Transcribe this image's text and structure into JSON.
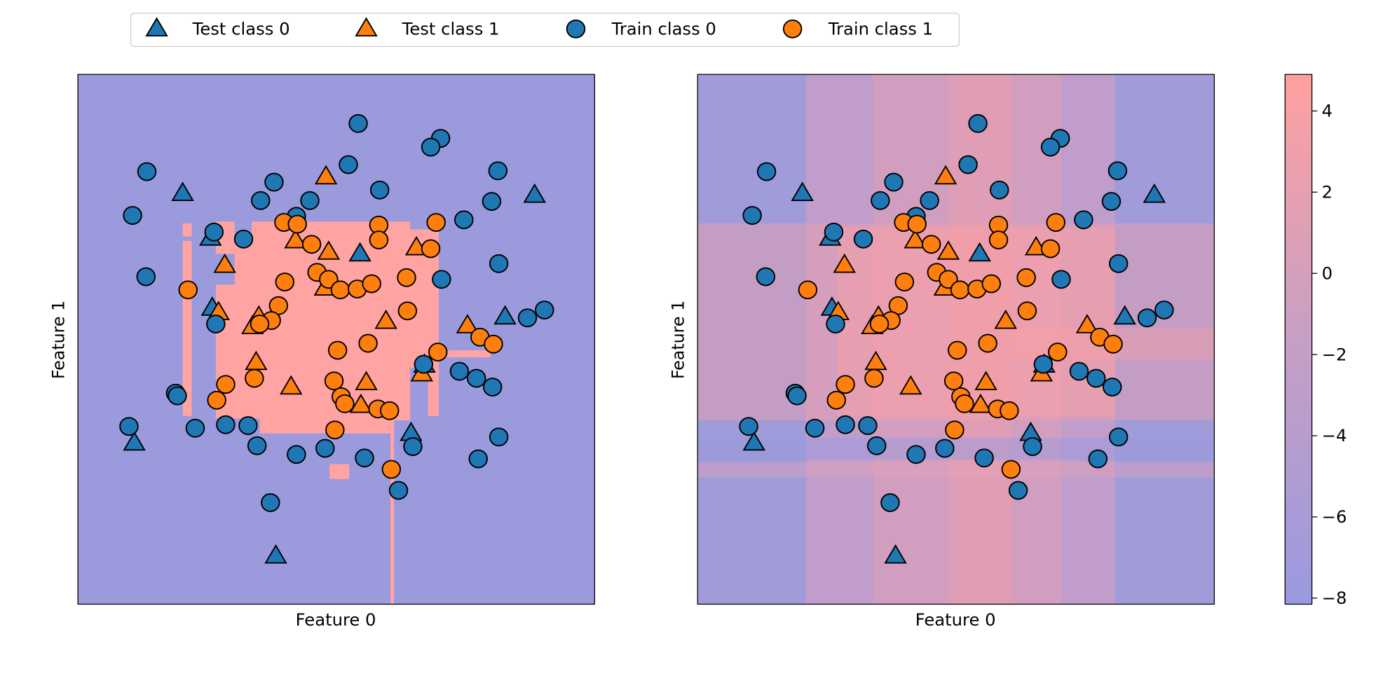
{
  "chart_data": {
    "type": "scatter",
    "xlabel": "Feature 0",
    "ylabel": "Feature 1",
    "xlim": [
      0,
      577
    ],
    "ylim": [
      0,
      605
    ],
    "series": [
      {
        "name": "Test class 0",
        "color": "#1f77b4",
        "marker": "triangle",
        "x": [
          117,
          510,
          148,
          315,
          150,
          477,
          387,
          372,
          63,
          221
        ],
        "y": [
          469,
          467,
          418,
          400,
          338,
          328,
          273,
          195,
          184,
          55
        ]
      },
      {
        "name": "Test class 1",
        "color": "#ff7f0e",
        "marker": "triangle",
        "x": [
          277,
          243,
          280,
          164,
          378,
          276,
          157,
          202,
          195,
          344,
          435,
          199,
          238,
          322,
          384,
          316
        ],
        "y": [
          488,
          415,
          402,
          387,
          407,
          361,
          333,
          328,
          317,
          323,
          318,
          276,
          248,
          253,
          263,
          227
        ]
      },
      {
        "name": "Train class 0",
        "color": "#1f77b4",
        "marker": "circle",
        "x": [
          313,
          405,
          394,
          77,
          469,
          302,
          219,
          337,
          204,
          259,
          462,
          61,
          244,
          431,
          152,
          185,
          470,
          76,
          406,
          521,
          502,
          154,
          386,
          426,
          445,
          463,
          109,
          111,
          57,
          131,
          165,
          190,
          200,
          244,
          276,
          320,
          374,
          470,
          447,
          358,
          215
        ],
        "y": [
          549,
          532,
          522,
          494,
          495,
          502,
          482,
          473,
          461,
          461,
          460,
          444,
          443,
          439,
          425,
          417,
          389,
          374,
          371,
          336,
          327,
          320,
          274,
          266,
          258,
          248,
          241,
          238,
          203,
          201,
          205,
          204,
          181,
          171,
          178,
          167,
          180,
          191,
          166,
          130,
          116
        ]
      },
      {
        "name": "Train class 1",
        "color": "#ff7f0e",
        "marker": "circle",
        "x": [
          230,
          245,
          336,
          400,
          336,
          261,
          394,
          123,
          231,
          267,
          280,
          293,
          312,
          328,
          367,
          224,
          368,
          216,
          203,
          290,
          324,
          402,
          449,
          464,
          165,
          197,
          155,
          286,
          294,
          298,
          335,
          348,
          287,
          350
        ],
        "y": [
          436,
          434,
          433,
          436,
          416,
          411,
          406,
          359,
          368,
          379,
          371,
          359,
          360,
          366,
          373,
          341,
          335,
          324,
          320,
          290,
          298,
          288,
          305,
          297,
          251,
          258,
          233,
          255,
          237,
          229,
          223,
          221,
          199,
          154
        ]
      }
    ],
    "colorbar": {
      "ylim": [
        -8.15,
        4.9
      ],
      "yticks": [
        {
          "value": -8,
          "label": "−8"
        },
        {
          "value": -6,
          "label": "−6"
        },
        {
          "value": -4,
          "label": "−4"
        },
        {
          "value": -2,
          "label": "−2"
        },
        0,
        2,
        4
      ]
    }
  }
}
